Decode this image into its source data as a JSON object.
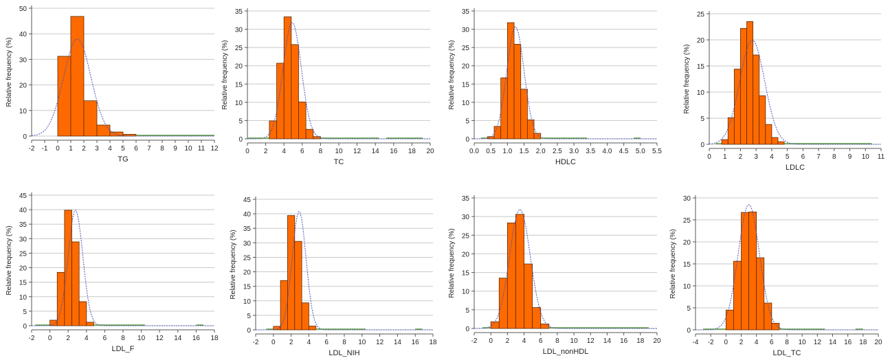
{
  "colors": {
    "bar_fill": "#ff6a00",
    "bar_stroke": "#5a2a00",
    "curve": "#4a50b8",
    "grid": "#c8c8c8",
    "axis": "#555555",
    "empty_bin": "#5a9a3a"
  },
  "chart_data": [
    {
      "type": "bar",
      "xlabel": "TG",
      "ylabel": "Relative frequency (%)",
      "xlim": [
        -2,
        12
      ],
      "xticks": [
        -2,
        -1,
        0,
        1,
        2,
        3,
        4,
        5,
        6,
        7,
        8,
        9,
        10,
        11,
        12
      ],
      "ylim": [
        0,
        50
      ],
      "yticks": [
        0,
        10,
        20,
        30,
        40,
        50
      ],
      "bin_width": 1,
      "bin_starts": [
        0,
        1,
        2,
        3,
        4,
        5,
        6,
        7,
        8,
        9,
        10,
        11
      ],
      "values": [
        31.2,
        46.8,
        13.8,
        4.3,
        1.6,
        0.7,
        0.4,
        0.3,
        0.2,
        0.2,
        0.2,
        0.2
      ],
      "normal_fit": {
        "mean": 1.5,
        "sd": 1.05
      }
    },
    {
      "type": "bar",
      "xlabel": "TC",
      "ylabel": "Relative frequency (%)",
      "xlim": [
        0,
        20
      ],
      "xticks": [
        0,
        2,
        4,
        6,
        8,
        10,
        12,
        14,
        16,
        18,
        20
      ],
      "ylim": [
        0,
        35
      ],
      "yticks": [
        0,
        5,
        10,
        15,
        20,
        25,
        30,
        35
      ],
      "bin_width": 0.8,
      "bin_starts": [
        0,
        0.8,
        1.6,
        2.4,
        3.2,
        4.0,
        4.8,
        5.6,
        6.4,
        7.2,
        8.0,
        8.8,
        9.6,
        10.4,
        11.2,
        12.0,
        12.8,
        13.6,
        15.2,
        16.0,
        16.8,
        17.6,
        18.4
      ],
      "values": [
        0.1,
        0.1,
        0.3,
        4.9,
        20.7,
        33.4,
        25.8,
        10.1,
        2.6,
        0.6,
        0.2,
        0.1,
        0.1,
        0.1,
        0.1,
        0.1,
        0.1,
        0.1,
        0.1,
        0.1,
        0.1,
        0.1,
        0.1
      ],
      "normal_fit": {
        "mean": 4.9,
        "sd": 1.0
      }
    },
    {
      "type": "bar",
      "xlabel": "HDLC",
      "ylabel": "Relative frequency (%)",
      "xlim": [
        0,
        5.5
      ],
      "xticks": [
        "0.0",
        "0.5",
        "1.0",
        "1.5",
        "2.0",
        "2.5",
        "3.0",
        "3.5",
        "4.0",
        "4.5",
        "5.0",
        "5.5"
      ],
      "ylim": [
        0,
        35
      ],
      "yticks": [
        0,
        5,
        10,
        15,
        20,
        25,
        30,
        35
      ],
      "bin_width": 0.2,
      "bin_starts": [
        0.2,
        0.4,
        0.6,
        0.8,
        1.0,
        1.2,
        1.4,
        1.6,
        1.8,
        2.0,
        2.2,
        2.4,
        2.6,
        2.8,
        3.0,
        3.2,
        4.8
      ],
      "values": [
        0.1,
        0.6,
        3.4,
        16.7,
        31.8,
        25.9,
        13.6,
        5.2,
        1.5,
        0.4,
        0.2,
        0.1,
        0.1,
        0.1,
        0.1,
        0.1,
        0.1
      ],
      "normal_fit": {
        "mean": 1.24,
        "sd": 0.26
      }
    },
    {
      "type": "bar",
      "xlabel": "LDLC",
      "ylabel": "Relative frequency (%)",
      "xlim": [
        0,
        11
      ],
      "xticks": [
        0,
        1,
        2,
        3,
        4,
        5,
        6,
        7,
        8,
        9,
        10,
        11
      ],
      "ylim": [
        0,
        25
      ],
      "yticks": [
        0,
        5,
        10,
        15,
        20,
        25
      ],
      "bin_width": 0.4,
      "bin_starts": [
        0.4,
        0.8,
        1.2,
        1.6,
        2.0,
        2.4,
        2.8,
        3.2,
        3.6,
        4.0,
        4.4,
        4.8,
        5.2,
        5.6,
        6.0,
        6.4,
        6.8,
        7.2,
        7.6,
        8.0,
        8.4,
        8.8,
        9.2,
        9.6,
        10.0
      ],
      "values": [
        0.2,
        0.9,
        5.1,
        14.4,
        22.2,
        23.5,
        17.1,
        9.3,
        3.8,
        1.3,
        0.5,
        0.2,
        0.1,
        0.1,
        0.1,
        0.1,
        0.1,
        0.1,
        0.1,
        0.1,
        0.1,
        0.1,
        0.1,
        0.1,
        0.1
      ],
      "normal_fit": {
        "mean": 2.75,
        "sd": 0.8
      }
    },
    {
      "type": "bar",
      "xlabel": "LDL_F",
      "ylabel": "Relative frequency (%)",
      "xlim": [
        -2,
        18
      ],
      "xticks": [
        -2,
        0,
        2,
        4,
        6,
        8,
        10,
        12,
        14,
        16,
        18
      ],
      "ylim": [
        0,
        45
      ],
      "yticks": [
        0,
        5,
        10,
        15,
        20,
        25,
        30,
        35,
        40,
        45
      ],
      "bin_width": 0.8,
      "bin_starts": [
        -1.6,
        -0.8,
        0.0,
        0.8,
        1.6,
        2.4,
        3.2,
        4.0,
        4.8,
        5.6,
        6.4,
        7.2,
        8.0,
        8.8,
        9.6,
        16.0
      ],
      "values": [
        0.1,
        0.2,
        1.9,
        18.4,
        39.8,
        28.9,
        8.3,
        1.2,
        0.3,
        0.2,
        0.1,
        0.1,
        0.1,
        0.1,
        0.1,
        0.1
      ],
      "normal_fit": {
        "mean": 2.8,
        "sd": 0.8
      }
    },
    {
      "type": "bar",
      "xlabel": "LDL_NIH",
      "ylabel": "Relative frequency (%)",
      "xlim": [
        -2,
        18
      ],
      "xticks": [
        -2,
        0,
        2,
        4,
        6,
        8,
        10,
        12,
        14,
        16,
        18
      ],
      "ylim": [
        0,
        45
      ],
      "yticks": [
        0,
        5,
        10,
        15,
        20,
        25,
        30,
        35,
        40,
        45
      ],
      "bin_width": 0.8,
      "bin_starts": [
        -0.8,
        0.0,
        0.8,
        1.6,
        2.4,
        3.2,
        4.0,
        4.8,
        5.6,
        6.4,
        7.2,
        8.0,
        8.8,
        9.6,
        16.0
      ],
      "values": [
        0.1,
        1.2,
        17.0,
        39.4,
        30.5,
        9.3,
        1.3,
        0.3,
        0.2,
        0.1,
        0.1,
        0.1,
        0.1,
        0.1,
        0.1
      ],
      "normal_fit": {
        "mean": 2.9,
        "sd": 0.78
      }
    },
    {
      "type": "bar",
      "xlabel": "LDL_nonHDL",
      "ylabel": "Relative frequency (%)",
      "xlim": [
        -2,
        20
      ],
      "xticks": [
        -2,
        0,
        2,
        4,
        6,
        8,
        10,
        12,
        14,
        16,
        18,
        20
      ],
      "ylim": [
        0,
        35
      ],
      "yticks": [
        0,
        5,
        10,
        15,
        20,
        25,
        30,
        35
      ],
      "bin_width": 1,
      "bin_starts": [
        -1,
        0,
        1,
        2,
        3,
        4,
        5,
        6,
        7,
        8,
        9,
        10,
        11,
        12,
        13,
        14,
        15,
        16,
        17,
        18
      ],
      "values": [
        0.1,
        1.8,
        13.5,
        28.3,
        30.6,
        17.3,
        5.6,
        1.2,
        0.3,
        0.2,
        0.1,
        0.1,
        0.1,
        0.1,
        0.1,
        0.1,
        0.1,
        0.1,
        0.1,
        0.1
      ],
      "normal_fit": {
        "mean": 3.5,
        "sd": 1.25
      }
    },
    {
      "type": "bar",
      "xlabel": "LDL_TC",
      "ylabel": "Relative frequency (%)",
      "xlim": [
        -4,
        20
      ],
      "xticks": [
        -4,
        -2,
        0,
        2,
        4,
        6,
        8,
        10,
        12,
        14,
        16,
        18,
        20
      ],
      "ylim": [
        0,
        30
      ],
      "yticks": [
        0,
        5,
        10,
        15,
        20,
        25,
        30
      ],
      "bin_width": 1,
      "bin_starts": [
        -3,
        -2,
        -1,
        0,
        1,
        2,
        3,
        4,
        5,
        6,
        7,
        8,
        9,
        10,
        11,
        12,
        17
      ],
      "values": [
        0.1,
        0.1,
        0.2,
        4.5,
        15.6,
        26.7,
        26.8,
        16.4,
        6.1,
        1.5,
        0.4,
        0.2,
        0.1,
        0.1,
        0.1,
        0.1,
        0.1
      ],
      "normal_fit": {
        "mean": 3.0,
        "sd": 1.4
      }
    }
  ]
}
